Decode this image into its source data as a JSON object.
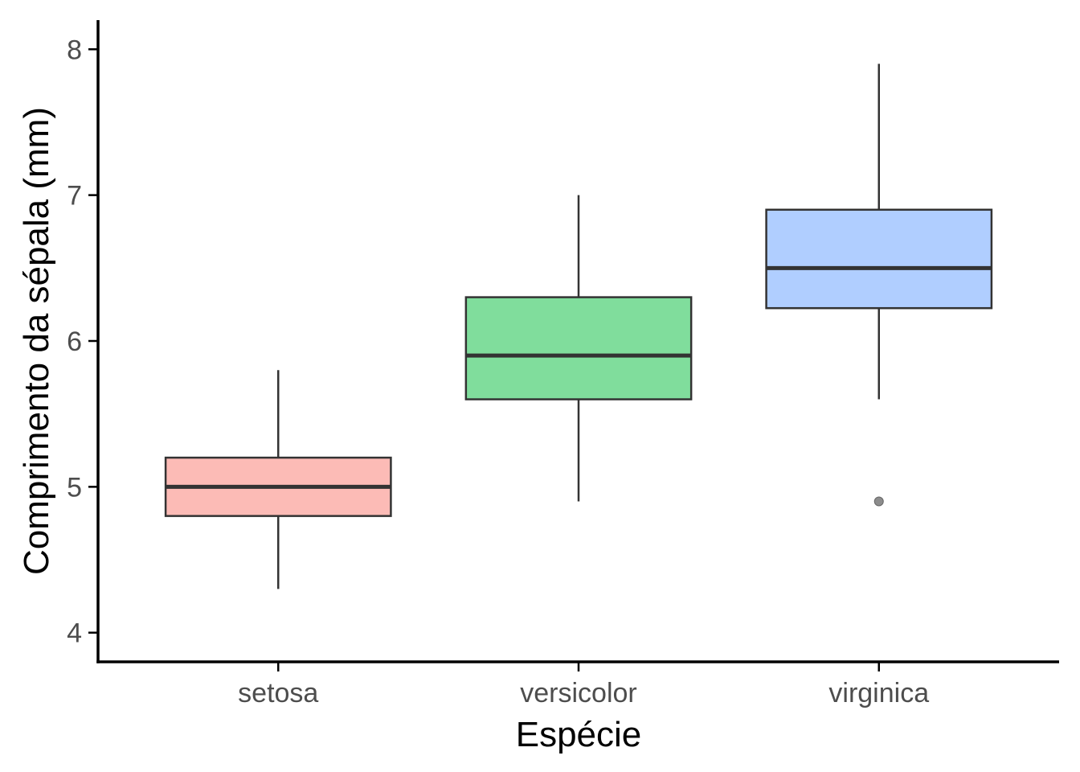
{
  "chart_data": {
    "type": "boxplot",
    "title": "",
    "xlabel": "Espécie",
    "ylabel": "Comprimento da sépala (mm)",
    "ylim": [
      3.8,
      8.2
    ],
    "y_ticks": [
      4,
      5,
      6,
      7,
      8
    ],
    "grid": false,
    "legend": "none",
    "categories": [
      "setosa",
      "versicolor",
      "virginica"
    ],
    "series": [
      {
        "category": "setosa",
        "min": 4.3,
        "q1": 4.8,
        "median": 5.0,
        "q3": 5.2,
        "max": 5.8,
        "outliers": [],
        "color": "#F8766D"
      },
      {
        "category": "versicolor",
        "min": 4.9,
        "q1": 5.6,
        "median": 5.9,
        "q3": 6.3,
        "max": 7.0,
        "outliers": [],
        "color": "#00BA38"
      },
      {
        "category": "virginica",
        "min": 5.6,
        "q1": 6.225,
        "median": 6.5,
        "q3": 6.9,
        "max": 7.9,
        "outliers": [
          4.9
        ],
        "color": "#619CFF"
      }
    ]
  }
}
